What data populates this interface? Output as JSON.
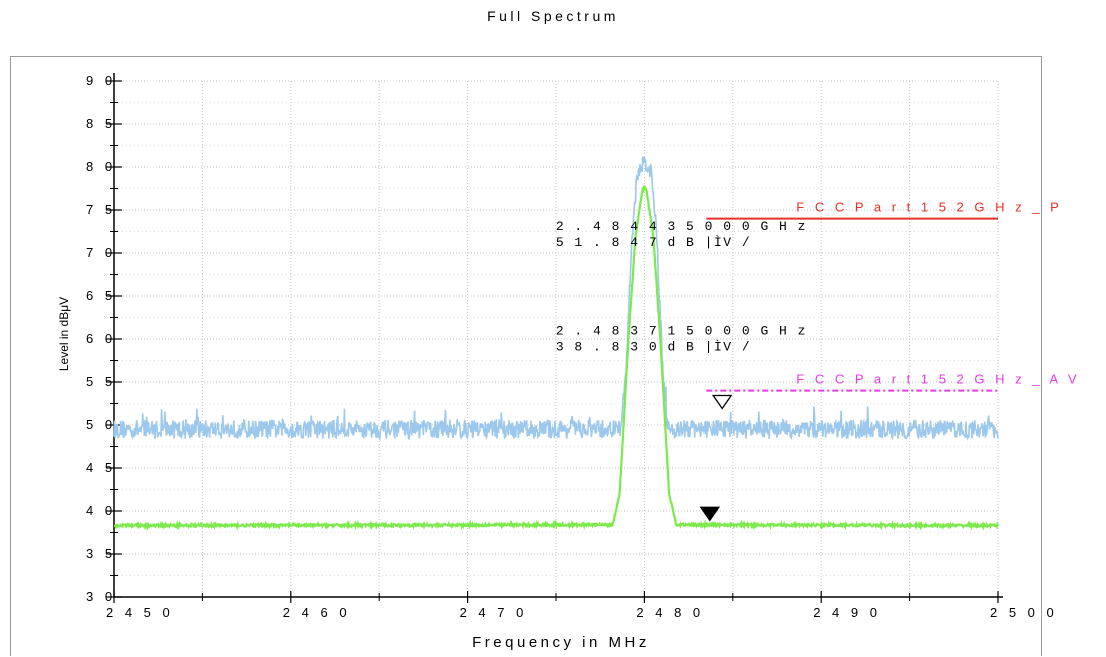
{
  "chart_data": {
    "type": "line",
    "title": "Full Spectrum",
    "xlabel": "Frequency in MHz",
    "ylabel": "Level in dBμV",
    "xlim": [
      2450,
      2500
    ],
    "ylim": [
      30,
      90
    ],
    "x_ticks": [
      "2 4 5 0",
      "2 4 6 0",
      "2 4 7 0",
      "2 4 8 0",
      "2 4 9 0",
      "2 5 0 0"
    ],
    "y_ticks": [
      "3 0",
      "3 5",
      "4 0",
      "4 5",
      "5 0",
      "5 5",
      "6 0",
      "6 5",
      "7 0",
      "7 5",
      "8 0",
      "8 5",
      "9 0"
    ],
    "grid": true,
    "series": [
      {
        "color": "#9cc8ec",
        "x": [
          2450,
          2478.7,
          2479.0,
          2479.3,
          2479.6,
          2479.9,
          2480.1,
          2480.4,
          2480.7,
          2481.0,
          2481.3,
          2500
        ],
        "y": [
          49.5,
          49.5,
          58,
          72,
          79,
          80.5,
          80.5,
          79,
          72,
          58,
          49.5,
          49.5
        ]
      },
      {
        "color": "#7cea4c",
        "x": [
          2450,
          2478.2,
          2478.6,
          2479.1,
          2479.5,
          2479.9,
          2480.1,
          2480.5,
          2480.9,
          2481.4,
          2481.8,
          2500
        ],
        "y": [
          38.3,
          38.4,
          42,
          60,
          72,
          77.5,
          77.5,
          72,
          60,
          42,
          38.4,
          38.3
        ]
      }
    ],
    "limit_lines": [
      {
        "label": "F C C  P a r t 1 5  2 G H z _ P",
        "y": 74,
        "x_start": 2483.5,
        "x_end": 2500,
        "color": "#e8302a",
        "style": "solid"
      },
      {
        "label": "F C C  P a r t 1 5  2 G H z _ A V",
        "y": 54,
        "x_start": 2483.5,
        "x_end": 2500,
        "color": "#e23ce2",
        "style": "dashdot"
      }
    ],
    "markers": [
      {
        "x": 2484.4,
        "y": 51.8,
        "style": "open"
      },
      {
        "x": 2483.7,
        "y": 38.8,
        "style": "filled"
      }
    ],
    "annotations": [
      {
        "lines": [
          "2 . 4 8 4 4 3 5 0 0 0  G H z",
          " 5 1 . 8 4 7  d B |ÌV /"
        ],
        "anchor": [
          2475.5,
          72.7
        ]
      },
      {
        "lines": [
          "2 . 4 8 3 7 1 5 0 0 0  G H z",
          " 3 8 . 8 3 0  d B |ÌV /"
        ],
        "anchor": [
          2475.5,
          60.5
        ]
      }
    ]
  }
}
